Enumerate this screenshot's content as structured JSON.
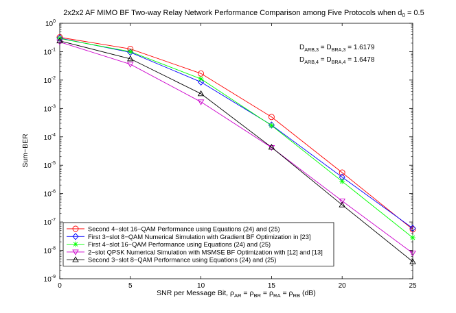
{
  "chart_data": {
    "type": "line",
    "title": "2x2x2 AF MIMO BF Two-way Relay Network Performance Comparison among Five Protocols when d",
    "title_sub": "0",
    "title_tail": " = 0.5",
    "xlabel": {
      "parts": [
        {
          "t": "SNR per Message Bit, ρ",
          "sub": false
        },
        {
          "t": "AR",
          "sub": true
        },
        {
          "t": " = ρ",
          "sub": false
        },
        {
          "t": "BR",
          "sub": true
        },
        {
          "t": " = ρ",
          "sub": false
        },
        {
          "t": "RA",
          "sub": true
        },
        {
          "t": " = ρ",
          "sub": false
        },
        {
          "t": "RB",
          "sub": true
        },
        {
          "t": " (dB)",
          "sub": false
        }
      ]
    },
    "ylabel": "Sum−BER",
    "yscale": "log",
    "xlim": [
      0,
      25
    ],
    "ylim_exp": [
      -9,
      0
    ],
    "xticks": [
      0,
      5,
      10,
      15,
      20,
      25
    ],
    "yticks_exp": [
      0,
      -1,
      -2,
      -3,
      -4,
      -5,
      -6,
      -7,
      -8,
      -9
    ],
    "x": [
      0,
      5,
      10,
      15,
      20,
      25
    ],
    "series": [
      {
        "name": "Second 4−slot 16−QAM Performance using Equations (24) and (25)",
        "color": "#ff0000",
        "marker": "circle",
        "values": [
          0.32,
          0.125,
          0.017,
          0.0005,
          5.5e-06,
          5.5e-08
        ]
      },
      {
        "name": "First 3−slot 8−QAM Numerical Simulation with Gradient BF Optimization in [23]",
        "color": "#0000ff",
        "marker": "diamond",
        "values": [
          0.3,
          0.095,
          0.0085,
          0.00026,
          3.8e-06,
          6e-08
        ]
      },
      {
        "name": "First 4−slot 16−QAM Performance using Equations (24) and (25)",
        "color": "#00ff00",
        "marker": "star",
        "values": [
          0.29,
          0.1,
          0.011,
          0.00025,
          2.7e-06,
          2.8e-08
        ]
      },
      {
        "name": "2−slot QPSK Numerical Simulation with MSMSE BF Optimization with [12] and [13]",
        "color": "#cc00cc",
        "marker": "triangle-down",
        "values": [
          0.22,
          0.036,
          0.0017,
          4.2e-05,
          5.5e-07,
          8e-09
        ]
      },
      {
        "name": "Second 3−slot 8−QAM Performance using Equations (24) and (25)",
        "color": "#000000",
        "marker": "triangle-up",
        "values": [
          0.24,
          0.056,
          0.0033,
          4.3e-05,
          4e-07,
          4e-09
        ]
      }
    ],
    "annotations": [
      [
        {
          "t": "D",
          "sub": false
        },
        {
          "t": "ARB,3",
          "sub": true
        },
        {
          "t": " = D",
          "sub": false
        },
        {
          "t": "BRA,3",
          "sub": true
        },
        {
          "t": " = 1.6179",
          "sub": false
        }
      ],
      [
        {
          "t": "D",
          "sub": false
        },
        {
          "t": "ARB,4",
          "sub": true
        },
        {
          "t": " = D",
          "sub": false
        },
        {
          "t": "BRA,4",
          "sub": true
        },
        {
          "t": " = 1.6478",
          "sub": false
        }
      ]
    ],
    "legend_position": "bottom-left",
    "grid": false
  }
}
